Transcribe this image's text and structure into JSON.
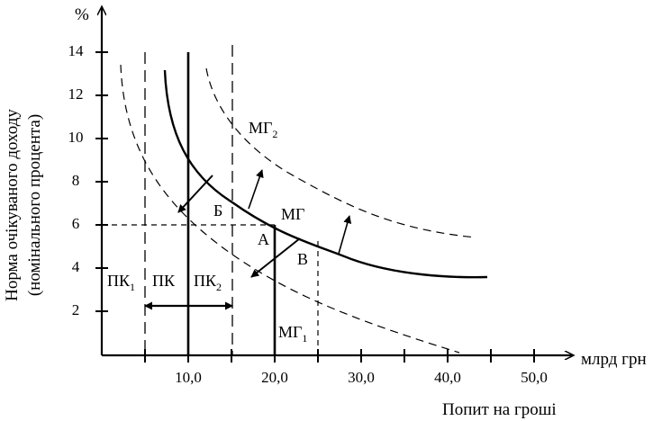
{
  "axes": {
    "y_unit": "%",
    "y_title_line1": "Норма очікуваного доходу",
    "y_title_line2": "(номінального процента)",
    "x_unit": "млрд грн",
    "x_title": "Попит на гроші",
    "y_ticks": [
      "14",
      "12",
      "10",
      "8",
      "6",
      "4",
      "2"
    ],
    "x_ticks": [
      "10,0",
      "20,0",
      "30,0",
      "40,0",
      "50,0"
    ]
  },
  "curves": {
    "md": {
      "label": "МГ"
    },
    "md1": {
      "label": "МГ",
      "subscript": "1"
    },
    "md2": {
      "label": "МГ",
      "subscript": "2"
    },
    "ms": {
      "label": "ПК"
    },
    "ms1": {
      "label": "ПК",
      "subscript": "1"
    },
    "ms2": {
      "label": "ПК",
      "subscript": "2"
    }
  },
  "points": {
    "a": "А",
    "b": "Б",
    "c": "В"
  },
  "colors": {
    "ink": "#000000",
    "background": "#ffffff"
  }
}
